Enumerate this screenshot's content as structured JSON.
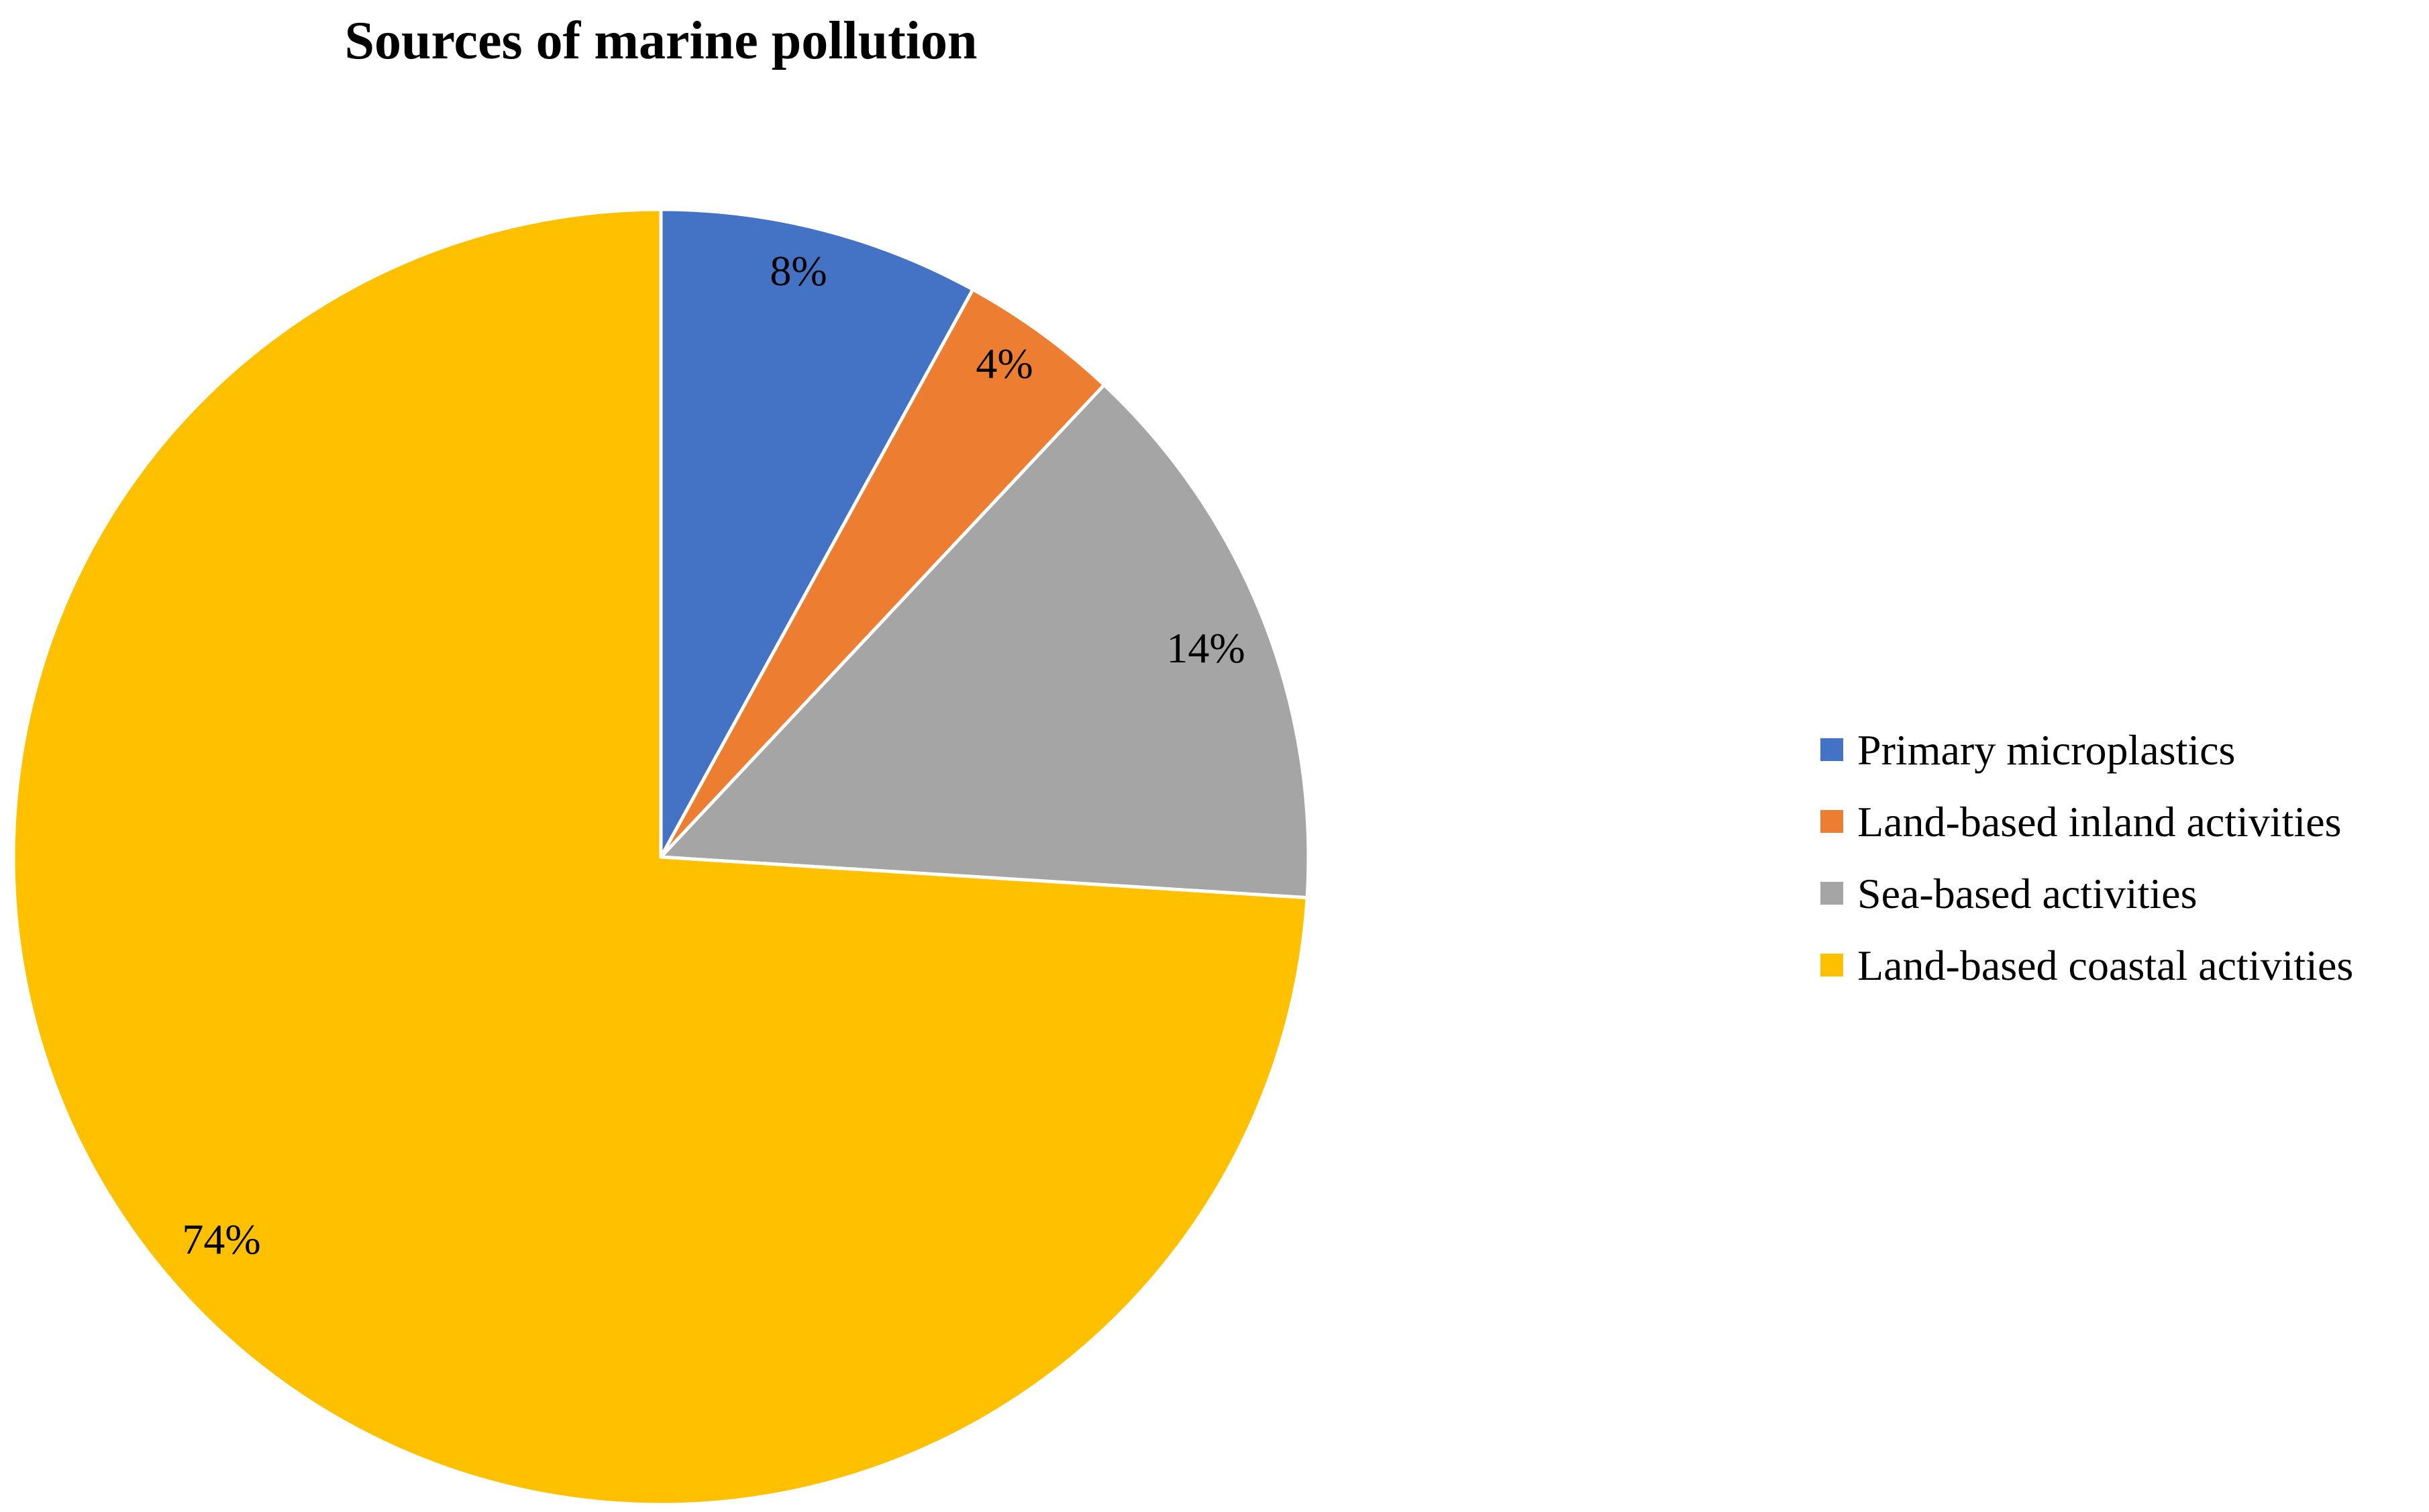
{
  "chart_data": {
    "type": "pie",
    "title": "Sources of marine pollution",
    "legend_position": "right",
    "slices": [
      {
        "name": "Primary microplastics",
        "value": 8,
        "label": "8%",
        "color": "#4472c4"
      },
      {
        "name": "Land-based inland activities",
        "value": 4,
        "label": "4%",
        "color": "#ed7d31"
      },
      {
        "name": "Sea-based activities",
        "value": 14,
        "label": "14%",
        "color": "#a5a5a5"
      },
      {
        "name": "Land-based coastal activities",
        "value": 74,
        "label": "74%",
        "color": "#ffc000"
      }
    ]
  }
}
